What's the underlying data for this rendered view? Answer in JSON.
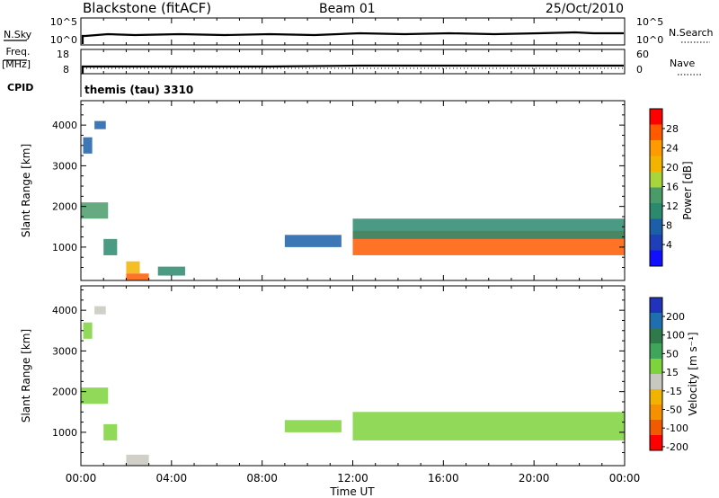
{
  "header": {
    "station": "Blackstone (fitACF)",
    "beam": "Beam 01",
    "date": "25/Oct/2010"
  },
  "panels": {
    "noise": {
      "left_label": "N.Sky",
      "left_ticks": [
        "10^5",
        "10^0"
      ],
      "right_ticks": [
        "10^5",
        "10^0"
      ],
      "right_label": "N.Search"
    },
    "freq": {
      "left_label_1": "Freq.",
      "left_label_2": "[MHz]",
      "left_ticks": [
        "18",
        "8"
      ],
      "right_ticks": [
        "60",
        "0"
      ],
      "right_label": "Nave"
    },
    "cpid": {
      "label": "CPID",
      "value": "themis (tau) 3310"
    }
  },
  "x_axis": {
    "title": "Time UT",
    "ticks": [
      "00:00",
      "04:00",
      "08:00",
      "12:00",
      "16:00",
      "20:00",
      "00:00"
    ]
  },
  "colorbars": {
    "power": {
      "title": "Power [dB]",
      "labels": [
        "28",
        "24",
        "20",
        "16",
        "12",
        "8",
        "4"
      ],
      "colors": [
        "#ff0000",
        "#ff5a00",
        "#ff9a00",
        "#f2b400",
        "#a8d53c",
        "#4a9b6a",
        "#2b8a6e",
        "#1c5fa8",
        "#1f3fb8",
        "#1010ff"
      ]
    },
    "velocity": {
      "title": "Velocity [m s⁻¹]",
      "labels": [
        "200",
        "100",
        "50",
        "15",
        "-15",
        "-50",
        "-100",
        "-200"
      ],
      "colors": [
        "#2233bb",
        "#1f6fb0",
        "#2e7a4a",
        "#3ea55a",
        "#7ed23c",
        "#c8c8c0",
        "#f0b400",
        "#f59000",
        "#f05a00",
        "#ff0000"
      ]
    }
  },
  "chart_data": [
    {
      "type": "heatmap",
      "title": "Power",
      "xlabel": "Time UT",
      "ylabel": "Slant Range [km]",
      "xlim": [
        0,
        24
      ],
      "ylim": [
        180,
        4600
      ],
      "yticks": [
        1000,
        2000,
        3000,
        4000
      ],
      "colorbar": {
        "label": "Power [dB]",
        "range": [
          0,
          30
        ]
      },
      "regions": [
        {
          "t0": 0.1,
          "t1": 0.5,
          "r0": 3300,
          "r1": 3700,
          "value": 6
        },
        {
          "t0": 0.6,
          "t1": 1.1,
          "r0": 3900,
          "r1": 4100,
          "value": 6
        },
        {
          "t0": 0.0,
          "t1": 1.2,
          "r0": 1700,
          "r1": 2100,
          "value": 14
        },
        {
          "t0": 1.0,
          "t1": 1.6,
          "r0": 800,
          "r1": 1200,
          "value": 10
        },
        {
          "t0": 2.0,
          "t1": 2.6,
          "r0": 350,
          "r1": 650,
          "value": 18
        },
        {
          "t0": 2.0,
          "t1": 3.0,
          "r0": 180,
          "r1": 350,
          "value": 26
        },
        {
          "t0": 3.4,
          "t1": 4.6,
          "r0": 300,
          "r1": 520,
          "value": 10
        },
        {
          "t0": 9.0,
          "t1": 11.5,
          "r0": 1000,
          "r1": 1300,
          "value": 8
        },
        {
          "t0": 12.0,
          "t1": 24.0,
          "r0": 800,
          "r1": 1400,
          "value": 26
        },
        {
          "t0": 12.0,
          "t1": 24.0,
          "r0": 1200,
          "r1": 1700,
          "value": 10
        }
      ]
    },
    {
      "type": "heatmap",
      "title": "Velocity",
      "xlabel": "Time UT",
      "ylabel": "Slant Range [km]",
      "xlim": [
        0,
        24
      ],
      "ylim": [
        180,
        4600
      ],
      "yticks": [
        1000,
        2000,
        3000,
        4000
      ],
      "colorbar": {
        "label": "Velocity [m s⁻¹]",
        "range": [
          -250,
          250
        ]
      },
      "regions": [
        {
          "t0": 0.1,
          "t1": 0.5,
          "r0": 3300,
          "r1": 3700,
          "value": 0
        },
        {
          "t0": 0.6,
          "t1": 1.1,
          "r0": 3900,
          "r1": 4100,
          "value": -40
        },
        {
          "t0": 0.0,
          "t1": 1.2,
          "r0": 1700,
          "r1": 2100,
          "value": 0
        },
        {
          "t0": 1.0,
          "t1": 1.6,
          "r0": 800,
          "r1": 1200,
          "value": 0
        },
        {
          "t0": 2.0,
          "t1": 3.0,
          "r0": 180,
          "r1": 450,
          "value": -40
        },
        {
          "t0": 9.0,
          "t1": 11.5,
          "r0": 1000,
          "r1": 1300,
          "value": 0
        },
        {
          "t0": 12.0,
          "t1": 24.0,
          "r0": 800,
          "r1": 1500,
          "value": 0
        }
      ]
    }
  ]
}
